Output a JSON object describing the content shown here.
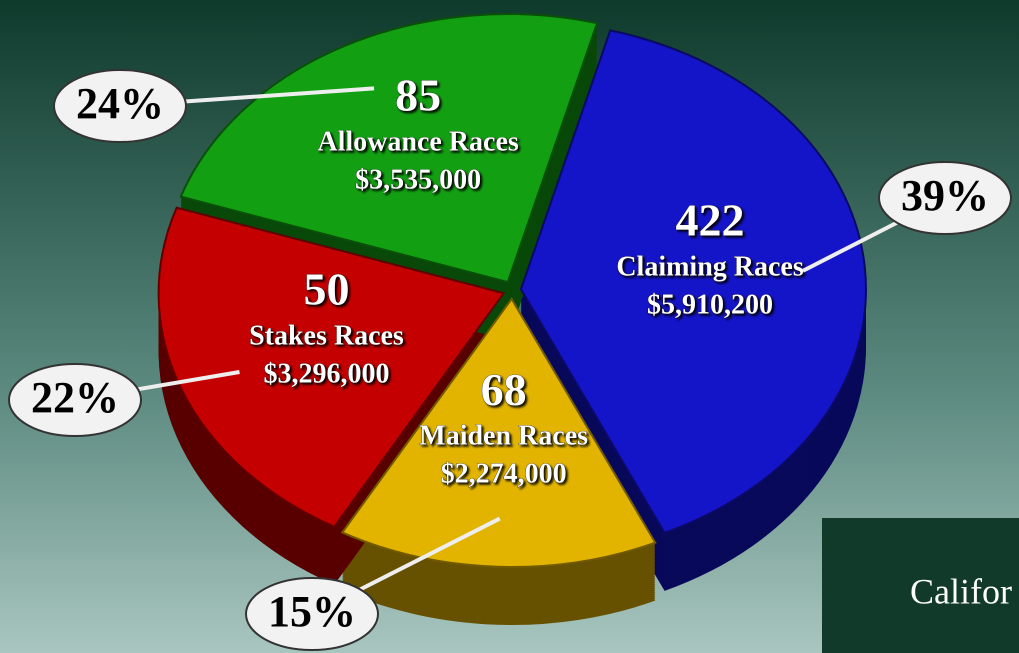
{
  "chart_data": {
    "type": "pie",
    "categories": [
      "Claiming Races",
      "Maiden Races",
      "Stakes Races",
      "Allowance Races"
    ],
    "values": [
      39,
      15,
      22,
      24
    ],
    "value_labels": [
      "39%",
      "15%",
      "22%",
      "24%"
    ],
    "counts": [
      422,
      68,
      50,
      85
    ],
    "purses": [
      "$5,910,200",
      "$2,274,000",
      "$3,296,000",
      "$3,535,000"
    ],
    "colors": [
      "#1414c8",
      "#e2b400",
      "#c40000",
      "#12a012"
    ],
    "footer_text": "Califor"
  }
}
